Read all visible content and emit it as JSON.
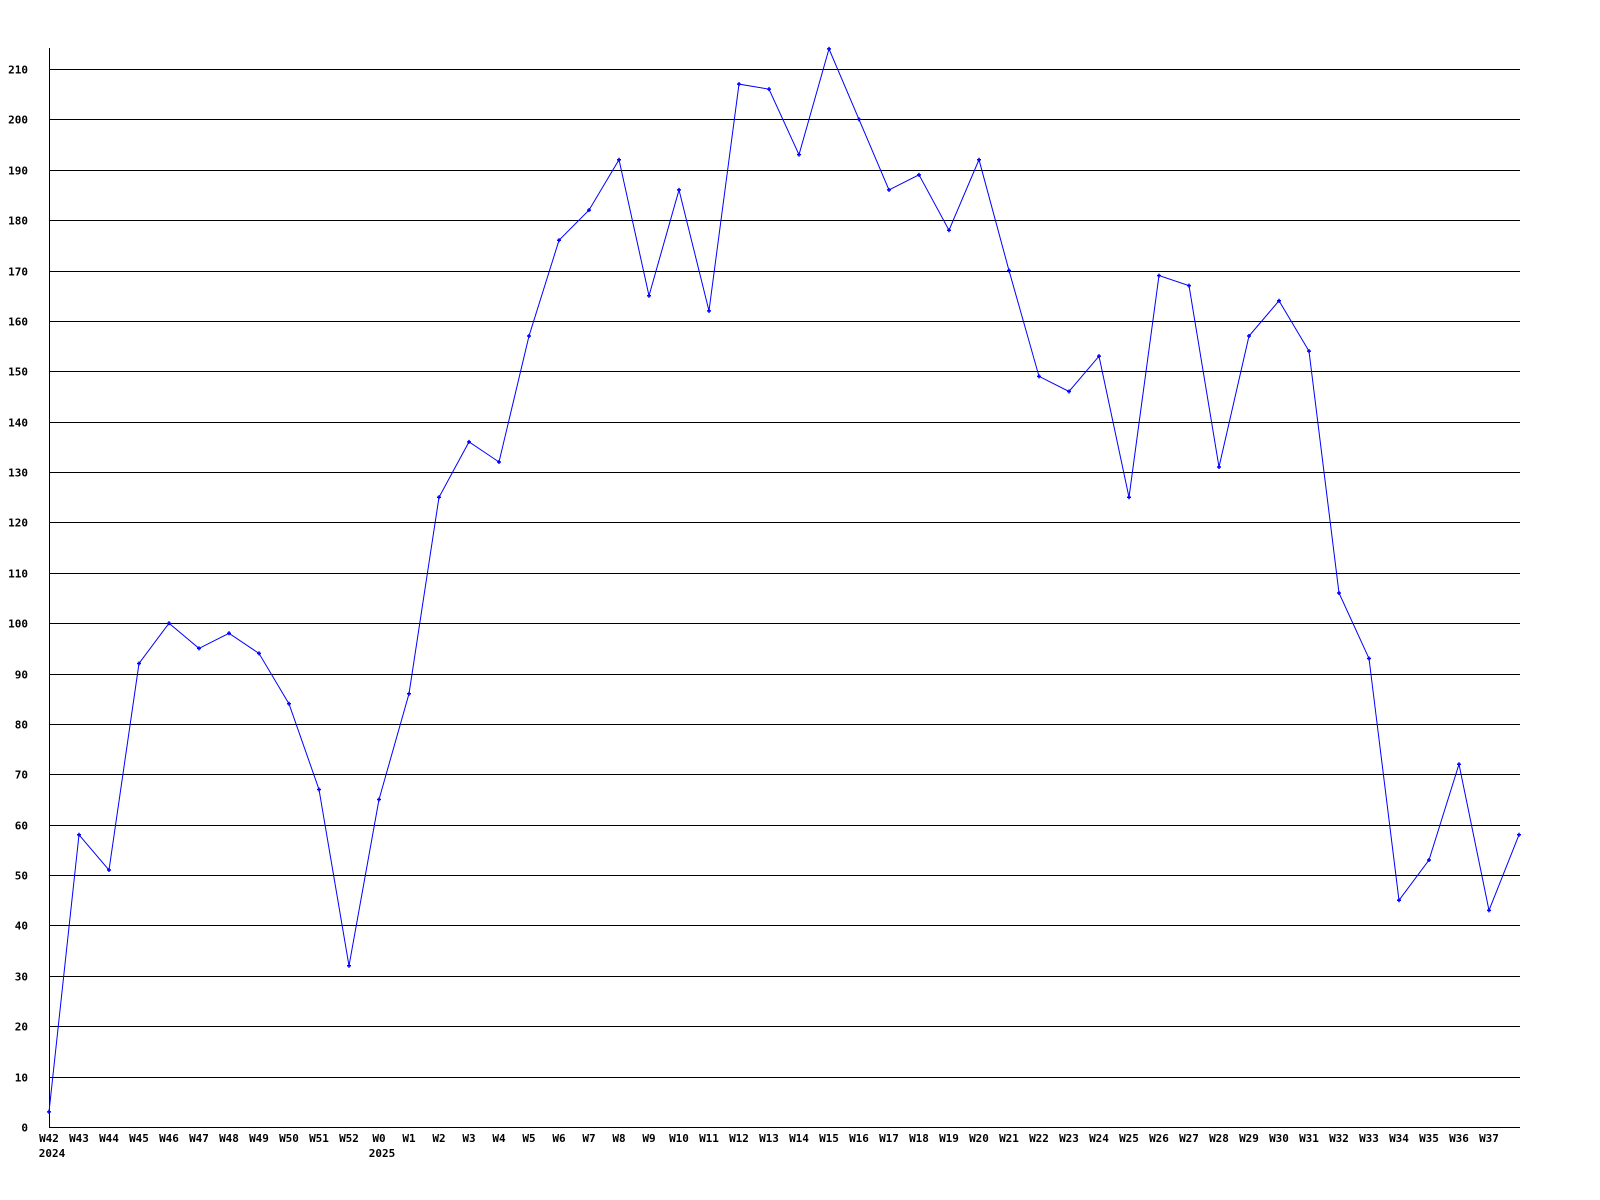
{
  "chart_data": {
    "type": "line",
    "title": "",
    "xlabel": "",
    "ylabel": "",
    "ylim": [
      0,
      214
    ],
    "yticks": [
      0,
      10,
      20,
      30,
      40,
      50,
      60,
      70,
      80,
      90,
      100,
      110,
      120,
      130,
      140,
      150,
      160,
      170,
      180,
      190,
      200,
      210
    ],
    "grid": true,
    "categories": [
      "W42",
      "W43",
      "W44",
      "W45",
      "W46",
      "W47",
      "W48",
      "W49",
      "W50",
      "W51",
      "W52",
      "W0",
      "W1",
      "W2",
      "W3",
      "W4",
      "W5",
      "W6",
      "W7",
      "W8",
      "W9",
      "W10",
      "W11",
      "W12",
      "W13",
      "W14",
      "W15",
      "W16",
      "W17",
      "W18",
      "W19",
      "W20",
      "W21",
      "W22",
      "W23",
      "W24",
      "W25",
      "W26",
      "W27",
      "W28",
      "W29",
      "W30",
      "W31",
      "W32",
      "W33",
      "W34",
      "W35",
      "W36",
      "W37",
      ""
    ],
    "year_labels": [
      {
        "category": "W42",
        "label": "2024"
      },
      {
        "category": "W0",
        "label": "2025"
      }
    ],
    "series": [
      {
        "color": "#0000ff",
        "values": [
          3,
          58,
          51,
          92,
          100,
          95,
          98,
          94,
          84,
          67,
          32,
          65,
          86,
          125,
          136,
          132,
          157,
          176,
          182,
          192,
          165,
          186,
          162,
          207,
          206,
          193,
          214,
          200,
          186,
          189,
          178,
          192,
          170,
          149,
          146,
          153,
          125,
          169,
          167,
          131,
          157,
          164,
          154,
          106,
          93,
          45,
          53,
          72,
          43,
          58
        ]
      }
    ]
  }
}
